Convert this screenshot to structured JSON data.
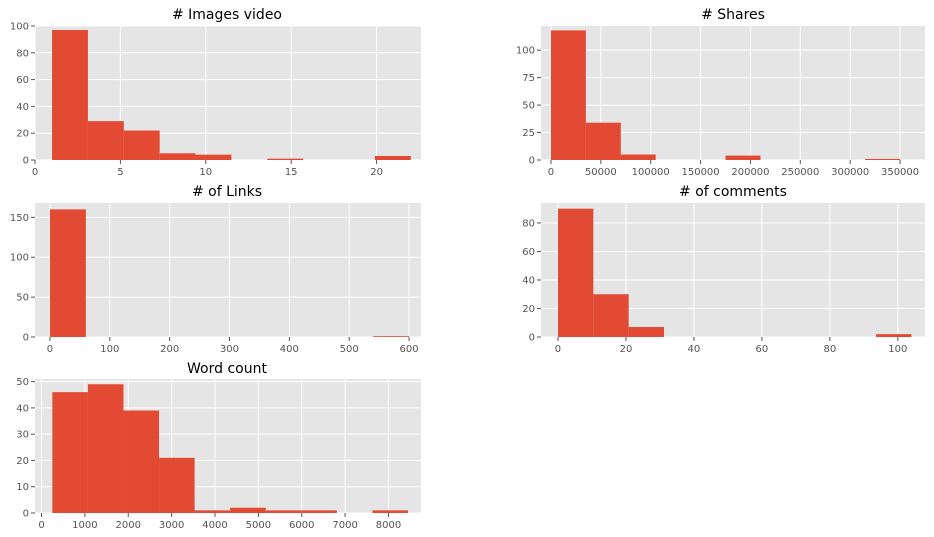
{
  "style": {
    "panel_background": "#e5e5e5",
    "grid_color": "#ffffff",
    "bar_color": "#e24a33",
    "tick_color": "#555555",
    "title_color": "#000000"
  },
  "chart_data": [
    {
      "id": "images-video",
      "type": "bar",
      "title": "# Images video",
      "xlim": [
        0,
        22.6
      ],
      "ylim": [
        0,
        100
      ],
      "xticks": [
        0,
        5,
        10,
        15,
        20
      ],
      "yticks": [
        0,
        20,
        40,
        60,
        80,
        100
      ],
      "bins": [
        {
          "x0": 1.0,
          "x1": 3.1,
          "value": 97
        },
        {
          "x0": 3.1,
          "x1": 5.2,
          "value": 29
        },
        {
          "x0": 5.2,
          "x1": 7.3,
          "value": 22
        },
        {
          "x0": 7.3,
          "x1": 9.4,
          "value": 5
        },
        {
          "x0": 9.4,
          "x1": 11.5,
          "value": 4
        },
        {
          "x0": 11.5,
          "x1": 13.6,
          "value": 0
        },
        {
          "x0": 13.6,
          "x1": 15.7,
          "value": 1
        },
        {
          "x0": 15.7,
          "x1": 17.8,
          "value": 0
        },
        {
          "x0": 17.8,
          "x1": 19.9,
          "value": 0
        },
        {
          "x0": 19.9,
          "x1": 22.0,
          "value": 3
        }
      ]
    },
    {
      "id": "shares",
      "type": "bar",
      "title": "# Shares",
      "xlim": [
        -10000,
        375000
      ],
      "ylim": [
        0,
        122
      ],
      "xticks": [
        0,
        50000,
        100000,
        150000,
        200000,
        250000,
        300000,
        350000
      ],
      "yticks": [
        0,
        25,
        50,
        75,
        100
      ],
      "bins": [
        {
          "x0": 0,
          "x1": 35000,
          "value": 118
        },
        {
          "x0": 35000,
          "x1": 70000,
          "value": 34
        },
        {
          "x0": 70000,
          "x1": 105000,
          "value": 5
        },
        {
          "x0": 105000,
          "x1": 140000,
          "value": 0
        },
        {
          "x0": 140000,
          "x1": 175000,
          "value": 0
        },
        {
          "x0": 175000,
          "x1": 210000,
          "value": 4
        },
        {
          "x0": 210000,
          "x1": 245000,
          "value": 0
        },
        {
          "x0": 245000,
          "x1": 280000,
          "value": 0
        },
        {
          "x0": 280000,
          "x1": 315000,
          "value": 0
        },
        {
          "x0": 315000,
          "x1": 350000,
          "value": 1
        }
      ]
    },
    {
      "id": "links",
      "type": "bar",
      "title": "# of Links",
      "xlim": [
        -25,
        620
      ],
      "ylim": [
        0,
        168
      ],
      "xticks": [
        0,
        100,
        200,
        300,
        400,
        500,
        600
      ],
      "yticks": [
        0,
        50,
        100,
        150
      ],
      "bins": [
        {
          "x0": 0,
          "x1": 60,
          "value": 160
        },
        {
          "x0": 60,
          "x1": 120,
          "value": 0
        },
        {
          "x0": 120,
          "x1": 180,
          "value": 0
        },
        {
          "x0": 180,
          "x1": 240,
          "value": 0
        },
        {
          "x0": 240,
          "x1": 300,
          "value": 0
        },
        {
          "x0": 300,
          "x1": 360,
          "value": 0
        },
        {
          "x0": 360,
          "x1": 420,
          "value": 0
        },
        {
          "x0": 420,
          "x1": 480,
          "value": 0
        },
        {
          "x0": 480,
          "x1": 540,
          "value": 0
        },
        {
          "x0": 540,
          "x1": 600,
          "value": 1
        }
      ]
    },
    {
      "id": "comments",
      "type": "bar",
      "title": "# of comments",
      "xlim": [
        -5,
        108
      ],
      "ylim": [
        0,
        94
      ],
      "xticks": [
        0,
        20,
        40,
        60,
        80,
        100
      ],
      "yticks": [
        0,
        20,
        40,
        60,
        80
      ],
      "bins": [
        {
          "x0": 0,
          "x1": 10.4,
          "value": 90
        },
        {
          "x0": 10.4,
          "x1": 20.8,
          "value": 30
        },
        {
          "x0": 20.8,
          "x1": 31.2,
          "value": 7
        },
        {
          "x0": 31.2,
          "x1": 41.6,
          "value": 0
        },
        {
          "x0": 41.6,
          "x1": 52.0,
          "value": 0
        },
        {
          "x0": 52.0,
          "x1": 62.4,
          "value": 0
        },
        {
          "x0": 62.4,
          "x1": 72.8,
          "value": 0
        },
        {
          "x0": 72.8,
          "x1": 83.2,
          "value": 0
        },
        {
          "x0": 83.2,
          "x1": 93.6,
          "value": 0
        },
        {
          "x0": 93.6,
          "x1": 104.0,
          "value": 2
        }
      ]
    },
    {
      "id": "word-count",
      "type": "bar",
      "title": "Word count",
      "xlim": [
        -150,
        8750
      ],
      "ylim": [
        0,
        51
      ],
      "xticks": [
        0,
        1000,
        2000,
        3000,
        4000,
        5000,
        6000,
        7000,
        8000
      ],
      "yticks": [
        0,
        10,
        20,
        30,
        40,
        50
      ],
      "bins": [
        {
          "x0": 250,
          "x1": 1070,
          "value": 46
        },
        {
          "x0": 1070,
          "x1": 1890,
          "value": 49
        },
        {
          "x0": 1890,
          "x1": 2710,
          "value": 39
        },
        {
          "x0": 2710,
          "x1": 3530,
          "value": 21
        },
        {
          "x0": 3530,
          "x1": 4350,
          "value": 1
        },
        {
          "x0": 4350,
          "x1": 5170,
          "value": 2
        },
        {
          "x0": 5170,
          "x1": 5990,
          "value": 1
        },
        {
          "x0": 5990,
          "x1": 6810,
          "value": 1
        },
        {
          "x0": 6810,
          "x1": 7630,
          "value": 0
        },
        {
          "x0": 7630,
          "x1": 8450,
          "value": 1
        }
      ]
    }
  ]
}
